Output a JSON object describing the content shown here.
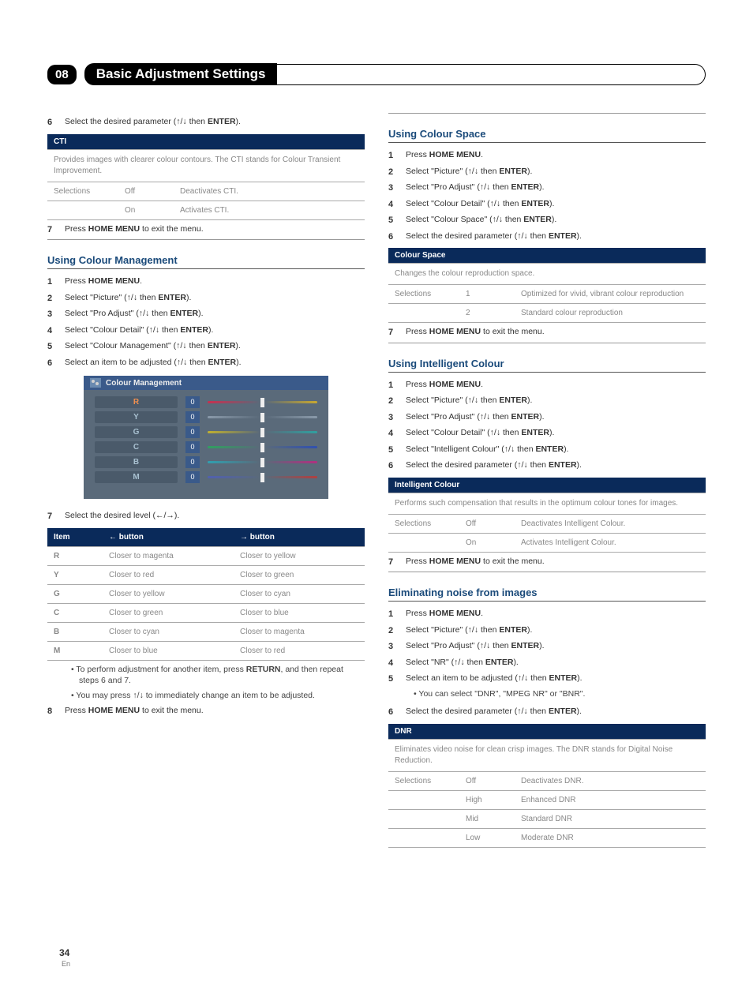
{
  "chapter": {
    "number": "08",
    "title": "Basic Adjustment Settings"
  },
  "glyphs": {
    "up": "↑",
    "down": "↓",
    "left": "←",
    "right": "→"
  },
  "left": {
    "step6a": {
      "num": "6",
      "text_before": "Select the desired parameter (",
      "text_after": " then ",
      "key": "ENTER",
      "end": ")."
    },
    "cti": {
      "header": "CTI",
      "desc": "Provides images with clearer colour contours. The CTI stands for Colour Transient Improvement.",
      "rows": [
        {
          "label": "Selections",
          "opt": "Off",
          "detail": "Deactivates CTI."
        },
        {
          "label": "",
          "opt": "On",
          "detail": "Activates CTI."
        }
      ]
    },
    "step7a": {
      "num": "7",
      "text": "Press ",
      "key": "HOME MENU",
      "after": " to exit the menu."
    },
    "cm_heading": "Using Colour Management",
    "cm_steps": [
      {
        "num": "1",
        "pre": "Press ",
        "key": "HOME MENU",
        "post": "."
      },
      {
        "num": "2",
        "pre": "Select \"Picture\" (",
        "post": " then ",
        "key": "ENTER",
        "end": ")."
      },
      {
        "num": "3",
        "pre": "Select \"Pro Adjust\" (",
        "post": " then ",
        "key": "ENTER",
        "end": ")."
      },
      {
        "num": "4",
        "pre": "Select \"Colour Detail\" (",
        "post": " then ",
        "key": "ENTER",
        "end": ")."
      },
      {
        "num": "5",
        "pre": "Select \"Colour Management\" (",
        "post": " then ",
        "key": "ENTER",
        "end": ")."
      },
      {
        "num": "6",
        "pre": "Select an item to be adjusted (",
        "post": " then ",
        "key": "ENTER",
        "end": ")."
      }
    ],
    "cm_panel": {
      "title": "Colour Management",
      "rows": [
        {
          "label": "R",
          "val": "0",
          "left_color": "#c83050",
          "right_color": "#c8a830",
          "thumb_pct": 50,
          "active": true
        },
        {
          "label": "Y",
          "val": "0",
          "left_color": "#8a9aaa",
          "right_color": "#8a9aaa",
          "thumb_pct": 50,
          "active": false
        },
        {
          "label": "G",
          "val": "0",
          "left_color": "#c0b030",
          "right_color": "#30a0a0",
          "thumb_pct": 50,
          "active": false
        },
        {
          "label": "C",
          "val": "0",
          "left_color": "#30a060",
          "right_color": "#3050b0",
          "thumb_pct": 50,
          "active": false
        },
        {
          "label": "B",
          "val": "0",
          "left_color": "#30a0b0",
          "right_color": "#b03080",
          "thumb_pct": 50,
          "active": false
        },
        {
          "label": "M",
          "val": "0",
          "left_color": "#5060b0",
          "right_color": "#b04040",
          "thumb_pct": 50,
          "active": false
        }
      ]
    },
    "step7b": {
      "num": "7",
      "text": "Select the desired level (",
      "end": ")."
    },
    "dir_table": {
      "h1": "Item",
      "h2_pre": " button",
      "h3_pre": " button",
      "rows": [
        {
          "i": "R",
          "l": "Closer to magenta",
          "r": "Closer to yellow"
        },
        {
          "i": "Y",
          "l": "Closer to red",
          "r": "Closer to green"
        },
        {
          "i": "G",
          "l": "Closer to yellow",
          "r": "Closer to cyan"
        },
        {
          "i": "C",
          "l": "Closer to green",
          "r": "Closer to blue"
        },
        {
          "i": "B",
          "l": "Closer to cyan",
          "r": "Closer to magenta"
        },
        {
          "i": "M",
          "l": "Closer to blue",
          "r": "Closer to red"
        }
      ]
    },
    "bullets": [
      {
        "pre": "To perform adjustment for another item, press ",
        "key": "RETURN",
        "post": ", and then repeat steps 6 and 7."
      },
      {
        "pre": "You may press ",
        "post": " to immediately change an item to be adjusted."
      }
    ],
    "step8": {
      "num": "8",
      "text": "Press ",
      "key": "HOME MENU",
      "after": " to exit the menu."
    }
  },
  "right": {
    "cs_heading": "Using Colour Space",
    "cs_steps": [
      {
        "num": "1",
        "pre": "Press ",
        "key": "HOME MENU",
        "post": "."
      },
      {
        "num": "2",
        "pre": "Select \"Picture\" (",
        "post": " then ",
        "key": "ENTER",
        "end": ")."
      },
      {
        "num": "3",
        "pre": "Select \"Pro Adjust\" (",
        "post": " then ",
        "key": "ENTER",
        "end": ")."
      },
      {
        "num": "4",
        "pre": "Select \"Colour Detail\" (",
        "post": " then ",
        "key": "ENTER",
        "end": ")."
      },
      {
        "num": "5",
        "pre": "Select \"Colour Space\" (",
        "post": " then ",
        "key": "ENTER",
        "end": ")."
      },
      {
        "num": "6",
        "pre": "Select the desired parameter (",
        "post": " then ",
        "key": "ENTER",
        "end": ")."
      }
    ],
    "cs_table": {
      "header": "Colour Space",
      "desc": "Changes the colour reproduction space.",
      "rows": [
        {
          "label": "Selections",
          "opt": "1",
          "detail": "Optimized for vivid, vibrant colour reproduction"
        },
        {
          "label": "",
          "opt": "2",
          "detail": "Standard colour reproduction"
        }
      ]
    },
    "step7c": {
      "num": "7",
      "text": "Press ",
      "key": "HOME MENU",
      "after": " to exit the menu."
    },
    "ic_heading": "Using Intelligent Colour",
    "ic_steps": [
      {
        "num": "1",
        "pre": "Press ",
        "key": "HOME MENU",
        "post": "."
      },
      {
        "num": "2",
        "pre": "Select \"Picture\" (",
        "post": " then ",
        "key": "ENTER",
        "end": ")."
      },
      {
        "num": "3",
        "pre": "Select \"Pro Adjust\" (",
        "post": " then ",
        "key": "ENTER",
        "end": ")."
      },
      {
        "num": "4",
        "pre": "Select \"Colour Detail\" (",
        "post": " then ",
        "key": "ENTER",
        "end": ")."
      },
      {
        "num": "5",
        "pre": "Select \"Intelligent Colour\" (",
        "post": " then ",
        "key": "ENTER",
        "end": ")."
      },
      {
        "num": "6",
        "pre": "Select the desired parameter (",
        "post": " then ",
        "key": "ENTER",
        "end": ")."
      }
    ],
    "ic_table": {
      "header": "Intelligent Colour",
      "desc": "Performs such compensation that results in the optimum colour tones for images.",
      "rows": [
        {
          "label": "Selections",
          "opt": "Off",
          "detail": "Deactivates Intelligent Colour."
        },
        {
          "label": "",
          "opt": "On",
          "detail": "Activates Intelligent Colour."
        }
      ]
    },
    "step7d": {
      "num": "7",
      "text": "Press ",
      "key": "HOME MENU",
      "after": " to exit the menu."
    },
    "nr_heading": "Eliminating noise from images",
    "nr_steps": [
      {
        "num": "1",
        "pre": "Press ",
        "key": "HOME MENU",
        "post": "."
      },
      {
        "num": "2",
        "pre": "Select \"Picture\" (",
        "post": " then ",
        "key": "ENTER",
        "end": ")."
      },
      {
        "num": "3",
        "pre": "Select \"Pro Adjust\" (",
        "post": " then ",
        "key": "ENTER",
        "end": ")."
      },
      {
        "num": "4",
        "pre": "Select \"NR\" (",
        "post": " then ",
        "key": "ENTER",
        "end": ")."
      },
      {
        "num": "5",
        "pre": "Select an item to be adjusted (",
        "post": " then ",
        "key": "ENTER",
        "end": ").",
        "sub": "You can select \"DNR\", \"MPEG NR\" or \"BNR\"."
      },
      {
        "num": "6",
        "pre": "Select the desired parameter (",
        "post": " then ",
        "key": "ENTER",
        "end": ")."
      }
    ],
    "dnr_table": {
      "header": "DNR",
      "desc": "Eliminates video noise for clean crisp images. The DNR stands for Digital Noise Reduction.",
      "rows": [
        {
          "label": "Selections",
          "opt": "Off",
          "detail": "Deactivates DNR."
        },
        {
          "label": "",
          "opt": "High",
          "detail": "Enhanced DNR"
        },
        {
          "label": "",
          "opt": "Mid",
          "detail": "Standard DNR"
        },
        {
          "label": "",
          "opt": "Low",
          "detail": "Moderate DNR"
        }
      ]
    }
  },
  "footer": {
    "page": "34",
    "lang": "En"
  }
}
